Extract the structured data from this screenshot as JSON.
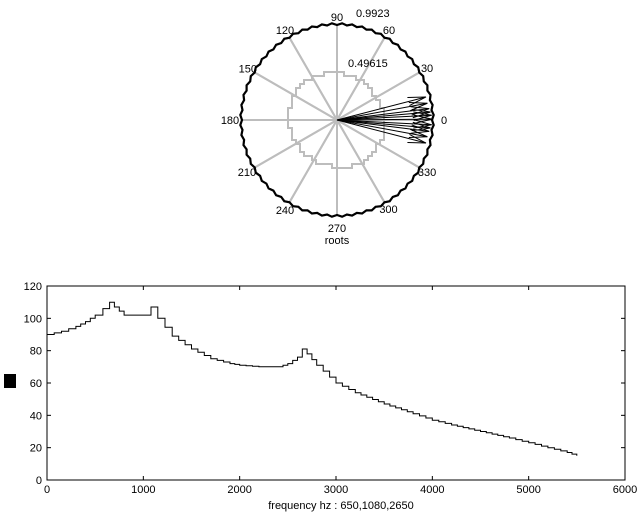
{
  "chart_data": [
    {
      "type": "polar",
      "xlabel": "roots",
      "radial_ticks": [
        "0.49615",
        "0.9923"
      ],
      "radial_max": 0.9923,
      "angle_ticks": [
        {
          "label": "0",
          "deg": 0
        },
        {
          "label": "30",
          "deg": 30
        },
        {
          "label": "60",
          "deg": 60
        },
        {
          "label": "90",
          "deg": 90
        },
        {
          "label": "120",
          "deg": 120
        },
        {
          "label": "150",
          "deg": 150
        },
        {
          "label": "180",
          "deg": 180
        },
        {
          "label": "210",
          "deg": 210
        },
        {
          "label": "240",
          "deg": 240
        },
        {
          "label": "270",
          "deg": 270
        },
        {
          "label": "300",
          "deg": 300
        },
        {
          "label": "330",
          "deg": 330
        }
      ],
      "grid": true,
      "root_vectors": [
        {
          "angle_deg": 2.9,
          "r": 0.99
        },
        {
          "angle_deg": -2.9,
          "r": 0.99
        },
        {
          "angle_deg": 4.9,
          "r": 0.98
        },
        {
          "angle_deg": -4.9,
          "r": 0.98
        },
        {
          "angle_deg": 7.0,
          "r": 0.97
        },
        {
          "angle_deg": -7.0,
          "r": 0.97
        },
        {
          "angle_deg": 10.5,
          "r": 0.96
        },
        {
          "angle_deg": -10.5,
          "r": 0.96
        },
        {
          "angle_deg": 14.5,
          "r": 0.96
        },
        {
          "angle_deg": -14.5,
          "r": 0.96
        },
        {
          "angle_deg": 0.5,
          "r": 0.99
        }
      ]
    },
    {
      "type": "line",
      "xlabel": "frequency hz : 650,1080,2650",
      "ylabel": "",
      "xlim": [
        0,
        6000
      ],
      "ylim": [
        0,
        120
      ],
      "x_ticks": [
        "0",
        "1000",
        "2000",
        "3000",
        "4000",
        "5000",
        "6000"
      ],
      "y_ticks": [
        "0",
        "20",
        "40",
        "60",
        "80",
        "100",
        "120"
      ],
      "series": [
        {
          "x": [
            0,
            150,
            300,
            400,
            500,
            580,
            650,
            700,
            800,
            900,
            1000,
            1080,
            1150,
            1300,
            1500,
            1700,
            1900,
            2000,
            2200,
            2400,
            2500,
            2600,
            2650,
            2700,
            2800,
            3000,
            3200,
            3500,
            3800,
            4000,
            4200,
            4500,
            4800,
            5000,
            5200,
            5400,
            5500
          ],
          "y": [
            90,
            92,
            95,
            98,
            102,
            106,
            110,
            107,
            102,
            102,
            102,
            107,
            100,
            89,
            81,
            75,
            72,
            71,
            70,
            70,
            72,
            76,
            81,
            78,
            71,
            60,
            54,
            47,
            41,
            37,
            34,
            30,
            26,
            23,
            20,
            17,
            15
          ]
        }
      ]
    }
  ],
  "legend_swatch_color": "#000000"
}
